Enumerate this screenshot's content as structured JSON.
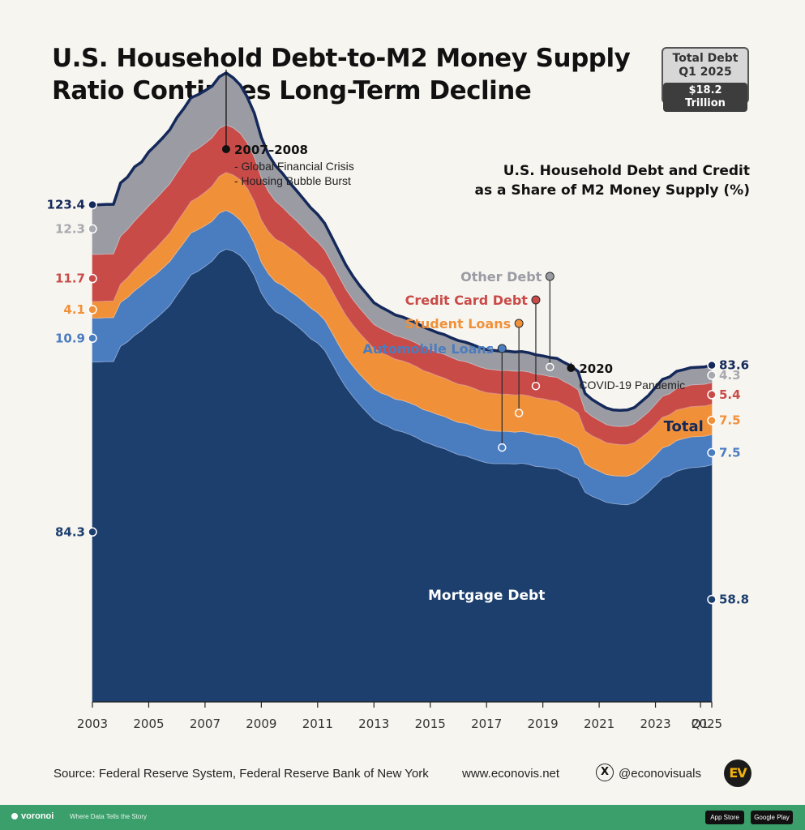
{
  "title": {
    "line1": "U.S. Household Debt-to-M2 Money Supply",
    "line2": "Ratio Continues Long-Term Decline"
  },
  "total_box": {
    "line1": "Total Debt",
    "line2": "Q1 2025",
    "value": "$18.2 Trillion"
  },
  "footer": {
    "source": "Source: Federal Reserve System, Federal Reserve Bank of New York",
    "website": "www.econovis.net",
    "handle": "@econovisuals",
    "x_icon_glyph": "X",
    "logo_text": "EV"
  },
  "bottom_bar": {
    "brand": "voronoi",
    "tagline": "Where Data Tells the Story",
    "app_store": "App Store",
    "google_play": "Google Play"
  },
  "colors": {
    "mortgage": "#1d3f6e",
    "auto": "#4a7cc0",
    "student": "#f0913a",
    "credit": "#c94b48",
    "other": "#9a9ba3",
    "total_line": "#14295a",
    "background": "#f7f5f0",
    "green_bar": "#3a9f6a"
  },
  "chart_data": {
    "type": "area",
    "stacked": true,
    "title": "U.S. Household Debt and Credit as a Share of M2 Money Supply (%)",
    "title_lines": [
      "U.S. Household Debt and Credit",
      "as a Share of M2 Money Supply (%)"
    ],
    "x_ticks": [
      "2003",
      "2005",
      "2007",
      "2009",
      "2011",
      "2013",
      "2015",
      "2017",
      "2019",
      "2021",
      "2023",
      "Q1",
      "2025"
    ],
    "ylim": [
      0,
      160
    ],
    "grid": false,
    "x": [
      2003.0,
      2003.25,
      2003.5,
      2003.75,
      2004.0,
      2004.25,
      2004.5,
      2004.75,
      2005.0,
      2005.25,
      2005.5,
      2005.75,
      2006.0,
      2006.25,
      2006.5,
      2006.75,
      2007.0,
      2007.25,
      2007.5,
      2007.75,
      2008.0,
      2008.25,
      2008.5,
      2008.75,
      2009.0,
      2009.25,
      2009.5,
      2009.75,
      2010.0,
      2010.25,
      2010.5,
      2010.75,
      2011.0,
      2011.25,
      2011.5,
      2011.75,
      2012.0,
      2012.25,
      2012.5,
      2012.75,
      2013.0,
      2013.25,
      2013.5,
      2013.75,
      2014.0,
      2014.25,
      2014.5,
      2014.75,
      2015.0,
      2015.25,
      2015.5,
      2015.75,
      2016.0,
      2016.25,
      2016.5,
      2016.75,
      2017.0,
      2017.25,
      2017.5,
      2017.75,
      2018.0,
      2018.25,
      2018.5,
      2018.75,
      2019.0,
      2019.25,
      2019.5,
      2019.75,
      2020.0,
      2020.25,
      2020.5,
      2020.75,
      2021.0,
      2021.25,
      2021.5,
      2021.75,
      2022.0,
      2022.25,
      2022.5,
      2022.75,
      2023.0,
      2023.25,
      2023.5,
      2023.75,
      2024.0,
      2024.25,
      2024.5,
      2024.75,
      2025.0
    ],
    "series": [
      {
        "name": "Mortgage Debt",
        "values": [
          84.3,
          84.3,
          84.4,
          84.4,
          88.2,
          89.3,
          90.9,
          92.1,
          93.7,
          95.0,
          96.6,
          98.3,
          100.9,
          103.3,
          105.9,
          106.8,
          108.0,
          109.3,
          111.4,
          112.3,
          111.8,
          110.7,
          108.7,
          105.7,
          101.4,
          98.7,
          96.8,
          95.9,
          94.6,
          93.3,
          91.8,
          90.1,
          89.0,
          87.2,
          84.1,
          80.9,
          78.1,
          75.8,
          73.7,
          71.8,
          70.0,
          69.0,
          68.3,
          67.4,
          67.0,
          66.4,
          65.6,
          64.6,
          64.0,
          63.3,
          62.8,
          62.0,
          61.3,
          61.0,
          60.4,
          59.8,
          59.3,
          59.1,
          59.1,
          59.1,
          59.0,
          59.2,
          58.9,
          58.4,
          58.3,
          57.9,
          57.8,
          56.9,
          56.1,
          55.4,
          52.0,
          51.0,
          50.3,
          49.5,
          49.2,
          49.0,
          48.9,
          49.4,
          50.6,
          52.0,
          53.7,
          55.5,
          56.1,
          57.2,
          57.7,
          58.1,
          58.2,
          58.4,
          58.8
        ]
      },
      {
        "name": "Automobile Loans",
        "values": [
          10.9,
          10.9,
          10.9,
          10.9,
          10.9,
          11.0,
          11.1,
          11.2,
          11.1,
          11.0,
          11.0,
          10.9,
          10.7,
          10.6,
          10.4,
          10.3,
          10.1,
          9.9,
          9.8,
          9.6,
          9.2,
          8.8,
          8.4,
          8.0,
          7.6,
          7.5,
          7.4,
          7.4,
          7.3,
          7.4,
          7.5,
          7.6,
          7.5,
          7.5,
          7.6,
          7.6,
          7.5,
          7.5,
          7.5,
          7.6,
          7.6,
          7.6,
          7.7,
          7.7,
          7.8,
          7.8,
          7.9,
          7.9,
          8.0,
          8.0,
          8.0,
          8.0,
          8.0,
          8.1,
          8.1,
          8.1,
          8.1,
          8.1,
          8.0,
          8.0,
          7.9,
          7.9,
          7.9,
          7.9,
          7.9,
          7.9,
          7.8,
          7.8,
          7.8,
          7.6,
          7.1,
          7.0,
          6.9,
          6.9,
          6.9,
          7.0,
          7.1,
          7.2,
          7.3,
          7.4,
          7.4,
          7.5,
          7.5,
          7.6,
          7.6,
          7.6,
          7.6,
          7.5,
          7.5
        ]
      },
      {
        "name": "Student Loans",
        "values": [
          4.1,
          4.1,
          4.1,
          4.1,
          4.5,
          4.9,
          5.3,
          5.7,
          6.1,
          6.5,
          6.8,
          7.1,
          7.4,
          7.6,
          7.8,
          8.0,
          8.3,
          8.7,
          9.1,
          9.4,
          9.7,
          10.0,
          10.3,
          10.4,
          10.5,
          10.5,
          10.6,
          10.6,
          10.7,
          10.7,
          10.6,
          10.6,
          10.5,
          10.5,
          10.4,
          10.4,
          10.3,
          10.2,
          10.2,
          10.1,
          10.0,
          10.0,
          9.9,
          9.9,
          9.8,
          9.8,
          9.7,
          9.7,
          9.6,
          9.6,
          9.5,
          9.5,
          9.5,
          9.4,
          9.4,
          9.3,
          9.3,
          9.3,
          9.2,
          9.2,
          9.2,
          9.1,
          9.1,
          9.1,
          9.0,
          9.0,
          9.0,
          9.0,
          8.9,
          8.7,
          8.1,
          8.0,
          8.0,
          7.9,
          7.9,
          7.8,
          7.8,
          7.7,
          7.7,
          7.6,
          7.6,
          7.6,
          7.6,
          7.6,
          7.5,
          7.5,
          7.5,
          7.5,
          7.5
        ]
      },
      {
        "name": "Credit Card Debt",
        "values": [
          11.7,
          11.7,
          11.7,
          11.7,
          11.9,
          12.0,
          12.0,
          12.1,
          12.1,
          12.2,
          12.2,
          12.2,
          12.2,
          12.2,
          12.1,
          12.1,
          12.1,
          12.0,
          11.9,
          11.8,
          11.7,
          11.5,
          11.2,
          11.0,
          10.5,
          9.9,
          9.4,
          8.8,
          8.3,
          7.9,
          7.6,
          7.3,
          7.1,
          6.9,
          6.8,
          6.7,
          6.5,
          6.3,
          6.2,
          6.1,
          6.0,
          6.0,
          5.9,
          5.9,
          5.8,
          5.8,
          5.8,
          5.8,
          5.8,
          5.8,
          5.9,
          5.9,
          5.9,
          5.9,
          5.9,
          5.9,
          5.9,
          5.9,
          5.9,
          5.9,
          5.9,
          5.9,
          5.9,
          5.9,
          5.9,
          5.9,
          5.9,
          5.8,
          5.8,
          5.7,
          5.0,
          4.8,
          4.6,
          4.5,
          4.4,
          4.5,
          4.6,
          4.7,
          4.8,
          4.9,
          5.1,
          5.2,
          5.2,
          5.3,
          5.3,
          5.4,
          5.4,
          5.4,
          5.4
        ]
      },
      {
        "name": "Other Debt",
        "values": [
          12.3,
          12.3,
          12.3,
          12.3,
          13.2,
          13.0,
          13.4,
          12.8,
          13.4,
          13.4,
          13.3,
          13.4,
          13.7,
          13.5,
          13.6,
          13.4,
          13.1,
          12.8,
          12.8,
          12.9,
          12.4,
          12.0,
          11.4,
          10.9,
          10.0,
          9.2,
          8.8,
          8.4,
          7.9,
          7.5,
          7.2,
          7.0,
          6.8,
          6.6,
          6.4,
          6.2,
          6.0,
          5.8,
          5.6,
          5.5,
          5.4,
          5.3,
          5.2,
          5.1,
          5.1,
          5.0,
          5.0,
          5.0,
          4.9,
          4.9,
          4.9,
          4.9,
          4.9,
          4.8,
          4.8,
          4.8,
          4.8,
          4.8,
          4.8,
          4.8,
          4.8,
          4.8,
          4.8,
          4.8,
          4.7,
          4.7,
          4.7,
          4.7,
          4.7,
          4.6,
          4.3,
          4.2,
          4.1,
          4.1,
          4.0,
          4.0,
          4.0,
          4.0,
          4.1,
          4.1,
          4.2,
          4.2,
          4.2,
          4.3,
          4.3,
          4.3,
          4.3,
          4.3,
          4.3
        ]
      }
    ],
    "total": {
      "name": "Total",
      "start": 123.4,
      "end": 83.6
    },
    "start_labels": [
      {
        "series": "Total",
        "text": "123.4"
      },
      {
        "series": "Other Debt",
        "text": "12.3"
      },
      {
        "series": "Credit Card Debt",
        "text": "11.7"
      },
      {
        "series": "Student Loans",
        "text": "4.1"
      },
      {
        "series": "Automobile Loans",
        "text": "10.9"
      },
      {
        "series": "Mortgage Debt",
        "text": "84.3"
      }
    ],
    "end_labels": [
      {
        "series": "Total",
        "text": "83.6"
      },
      {
        "series": "Other Debt",
        "text": "4.3"
      },
      {
        "series": "Credit Card Debt",
        "text": "5.4"
      },
      {
        "series": "Student Loans",
        "text": "7.5"
      },
      {
        "series": "Automobile Loans",
        "text": "7.5"
      },
      {
        "series": "Mortgage Debt",
        "text": "58.8"
      }
    ],
    "inline_labels": {
      "mortgage": "Mortgage Debt",
      "total": "Total"
    },
    "legend_callouts": [
      {
        "series": "Other Debt",
        "text": "Other Debt",
        "x": 2019.25
      },
      {
        "series": "Credit Card Debt",
        "text": "Credit Card Debt",
        "x": 2018.75
      },
      {
        "series": "Student Loans",
        "text": "Student Loans",
        "x": 2018.15
      },
      {
        "series": "Automobile Loans",
        "text": "Automobile Loans",
        "x": 2017.55
      }
    ],
    "annotations": [
      {
        "x": 2007.75,
        "year": "2007–2008",
        "lines": [
          "- Global Financial Crisis",
          "- Housing Bubble Burst"
        ]
      },
      {
        "x": 2020.0,
        "year": "2020",
        "lines": [
          "COVID-19 Pandemic"
        ]
      }
    ]
  }
}
